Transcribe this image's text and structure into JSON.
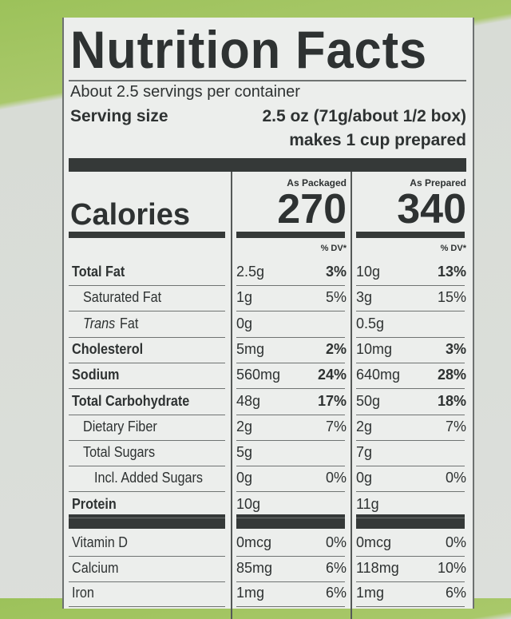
{
  "header": {
    "title": "Nutrition Facts",
    "servings": "About 2.5 servings per container",
    "serving_size_label": "Serving size",
    "serving_size": "2.5 oz (71g/about 1/2 box)",
    "prepared_note": "makes 1 cup prepared"
  },
  "columns": {
    "packaged": "As Packaged",
    "prepared": "As Prepared",
    "dv": "% DV*"
  },
  "calories": {
    "label": "Calories",
    "packaged": "270",
    "prepared": "340"
  },
  "nutrients": [
    {
      "name": "Total Fat",
      "packaged_amount": "2.5g",
      "packaged_dv": "3%",
      "prepared_amount": "10g",
      "prepared_dv": "13%"
    },
    {
      "name": "Saturated Fat",
      "packaged_amount": "1g",
      "packaged_dv": "5%",
      "prepared_amount": "3g",
      "prepared_dv": "15%"
    },
    {
      "name_italic": "Trans",
      "name": "Fat",
      "packaged_amount": "0g",
      "prepared_amount": "0.5g"
    },
    {
      "name": "Cholesterol",
      "packaged_amount": "5mg",
      "packaged_dv": "2%",
      "prepared_amount": "10mg",
      "prepared_dv": "3%"
    },
    {
      "name": "Sodium",
      "packaged_amount": "560mg",
      "packaged_dv": "24%",
      "prepared_amount": "640mg",
      "prepared_dv": "28%"
    },
    {
      "name": "Total Carbohydrate",
      "packaged_amount": "48g",
      "packaged_dv": "17%",
      "prepared_amount": "50g",
      "prepared_dv": "18%"
    },
    {
      "name": "Dietary Fiber",
      "packaged_amount": "2g",
      "packaged_dv": "7%",
      "prepared_amount": "2g",
      "prepared_dv": "7%"
    },
    {
      "name": "Total Sugars",
      "packaged_amount": "5g",
      "prepared_amount": "7g"
    },
    {
      "name": "Incl. Added Sugars",
      "packaged_amount": "0g",
      "packaged_dv": "0%",
      "prepared_amount": "0g",
      "prepared_dv": "0%"
    },
    {
      "name": "Protein",
      "packaged_amount": "10g",
      "prepared_amount": "11g"
    }
  ],
  "vitamins": [
    {
      "name": "Vitamin D",
      "packaged_amount": "0mcg",
      "packaged_dv": "0%",
      "prepared_amount": "0mcg",
      "prepared_dv": "0%"
    },
    {
      "name": "Calcium",
      "packaged_amount": "85mg",
      "packaged_dv": "6%",
      "prepared_amount": "118mg",
      "prepared_dv": "10%"
    },
    {
      "name": "Iron",
      "packaged_amount": "1mg",
      "packaged_dv": "6%",
      "prepared_amount": "1mg",
      "prepared_dv": "6%"
    }
  ]
}
